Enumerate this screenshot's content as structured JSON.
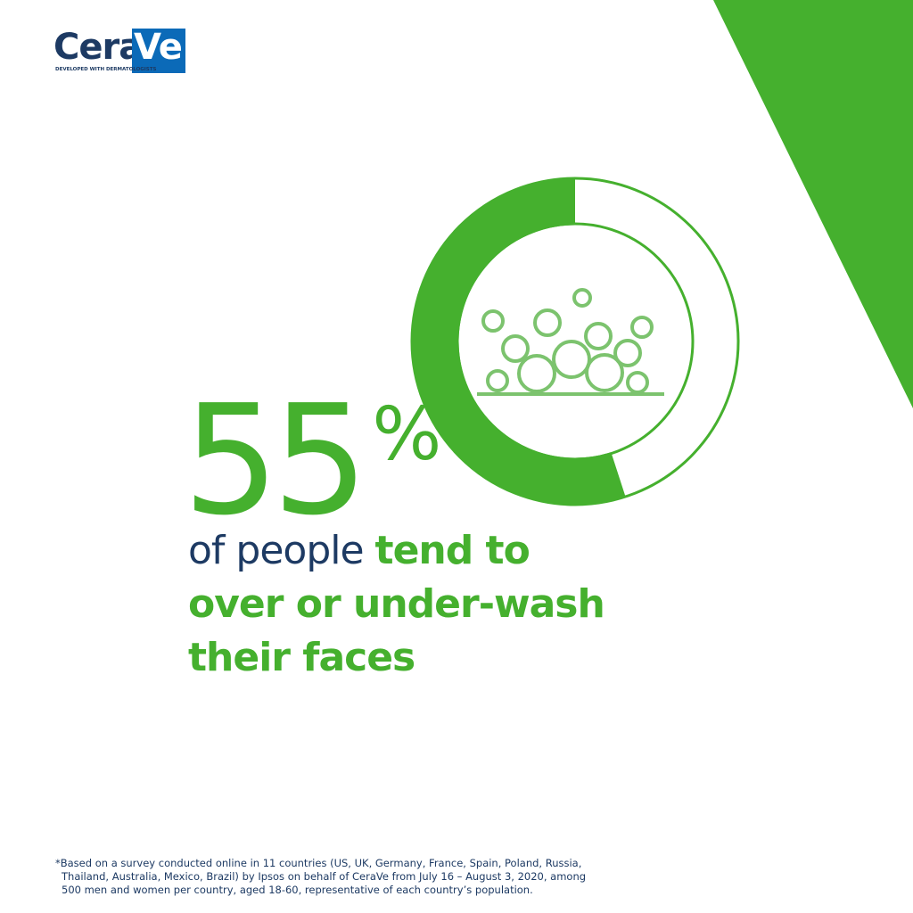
{
  "logo": {
    "name_part1": "Cera",
    "name_part2": "Ve",
    "tagline": "DEVELOPED WITH DERMATOLOGISTS"
  },
  "chart_data": {
    "type": "donut",
    "values": [
      55
    ],
    "value_labels": [
      "55%"
    ],
    "color": "#45b02e"
  },
  "caption_lead": "of people",
  "caption_emphasis": "tend to over or under-wash their faces",
  "footnote": [
    "*Based on a survey conducted online in 11 countries (US, UK, Germany, France, Spain, Poland, Russia,",
    "Thailand, Australia, Mexico, Brazil) by Ipsos on behalf of CeraVe from July 16 – August 3, 2020, among",
    "500 men and women per country, aged 18-60, representative of each country’s population."
  ]
}
